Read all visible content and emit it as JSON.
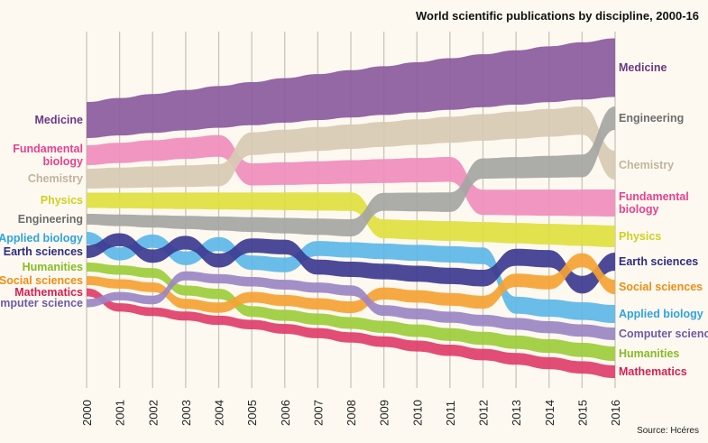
{
  "chart_data": {
    "type": "bump",
    "title": "World scientific publications by discipline, 2000-16",
    "source": "Source: Hcéres",
    "years": [
      2000,
      2001,
      2002,
      2003,
      2004,
      2005,
      2006,
      2007,
      2008,
      2009,
      2010,
      2011,
      2012,
      2013,
      2014,
      2015,
      2016
    ],
    "year_labels": [
      "2000",
      "2001",
      "2002",
      "2003",
      "2004",
      "2005",
      "2006",
      "2007",
      "2008",
      "2009",
      "2010",
      "2011",
      "2012",
      "2013",
      "2014",
      "2015",
      "2016"
    ],
    "grid": "vertical",
    "series": [
      {
        "name": "Medicine",
        "label_left": [
          "Medicine"
        ],
        "label_right": [
          "Medicine"
        ],
        "color": "#8b5a9e",
        "text_color": "#6a3a86",
        "rank": [
          1,
          1,
          1,
          1,
          1,
          1,
          1,
          1,
          1,
          1,
          1,
          1,
          1,
          1,
          1,
          1,
          1
        ]
      },
      {
        "name": "Fundamental biology",
        "label_left": [
          "Fundamental",
          "biology"
        ],
        "label_right": [
          "Fundamental",
          "biology"
        ],
        "color": "#f08dbd",
        "text_color": "#e8408f",
        "rank": [
          2,
          2,
          2,
          2,
          2,
          3,
          3,
          3,
          3,
          3,
          3,
          3,
          4,
          4,
          4,
          4,
          4
        ]
      },
      {
        "name": "Chemistry",
        "label_left": [
          "Chemistry"
        ],
        "label_right": [
          "Chemistry"
        ],
        "color": "#d8cab4",
        "text_color": "#c2b49c",
        "rank": [
          3,
          3,
          3,
          3,
          3,
          2,
          2,
          2,
          2,
          2,
          2,
          2,
          2,
          2,
          2,
          2,
          3
        ]
      },
      {
        "name": "Physics",
        "label_left": [
          "Physics"
        ],
        "label_right": [
          "Physics"
        ],
        "color": "#dfe040",
        "text_color": "#cdd020",
        "rank": [
          4,
          4,
          4,
          4,
          4,
          4,
          4,
          4,
          4,
          5,
          5,
          5,
          5,
          5,
          5,
          5,
          5
        ]
      },
      {
        "name": "Engineering",
        "label_left": [
          "Engineering"
        ],
        "label_right": [
          "Engineering"
        ],
        "color": "#a5a5a3",
        "text_color": "#6d6d6b",
        "rank": [
          5,
          5,
          5,
          5,
          5,
          5,
          5,
          5,
          5,
          4,
          4,
          4,
          3,
          3,
          3,
          3,
          2
        ]
      },
      {
        "name": "Applied biology",
        "label_left": [
          "Applied biology"
        ],
        "label_right": [
          "Applied biology"
        ],
        "color": "#5db7e8",
        "text_color": "#2fa3e0",
        "rank": [
          6,
          7,
          6,
          7,
          6,
          7,
          7,
          6,
          6,
          6,
          6,
          6,
          6,
          8,
          8,
          8,
          8
        ]
      },
      {
        "name": "Earth sciences",
        "label_left": [
          "Earth sciences"
        ],
        "label_right": [
          "Earth sciences"
        ],
        "color": "#3d3b90",
        "text_color": "#2e2c80",
        "rank": [
          7,
          6,
          7,
          6,
          7,
          6,
          6,
          7,
          7,
          7,
          7,
          7,
          7,
          6,
          6,
          7,
          6
        ]
      },
      {
        "name": "Humanities",
        "label_left": [
          "Humanities"
        ],
        "label_right": [
          "Humanities"
        ],
        "color": "#9dcc3c",
        "text_color": "#86bb24",
        "rank": [
          8,
          8,
          8,
          9,
          9,
          10,
          10,
          10,
          10,
          10,
          10,
          10,
          10,
          10,
          10,
          10,
          10
        ]
      },
      {
        "name": "Social sciences",
        "label_left": [
          "Social sciences"
        ],
        "label_right": [
          "Social sciences"
        ],
        "color": "#f5a234",
        "text_color": "#f08c14",
        "rank": [
          9,
          9,
          9,
          10,
          10,
          9,
          9,
          9,
          9,
          8,
          8,
          8,
          8,
          7,
          7,
          6,
          7
        ]
      },
      {
        "name": "Mathematics",
        "label_left": [
          "Mathematics"
        ],
        "label_right": [
          "Mathematics"
        ],
        "color": "#e03e6b",
        "text_color": "#d81e55",
        "rank": [
          10,
          11,
          11,
          11,
          11,
          11,
          11,
          11,
          11,
          11,
          11,
          11,
          11,
          11,
          11,
          11,
          11
        ]
      },
      {
        "name": "Computer science",
        "label_left": [
          "Computer science"
        ],
        "label_right": [
          "Computer science"
        ],
        "color": "#9b86c4",
        "text_color": "#6f5ba8",
        "rank": [
          11,
          10,
          10,
          8,
          8,
          8,
          8,
          8,
          8,
          9,
          9,
          9,
          9,
          9,
          9,
          9,
          9
        ]
      }
    ]
  }
}
